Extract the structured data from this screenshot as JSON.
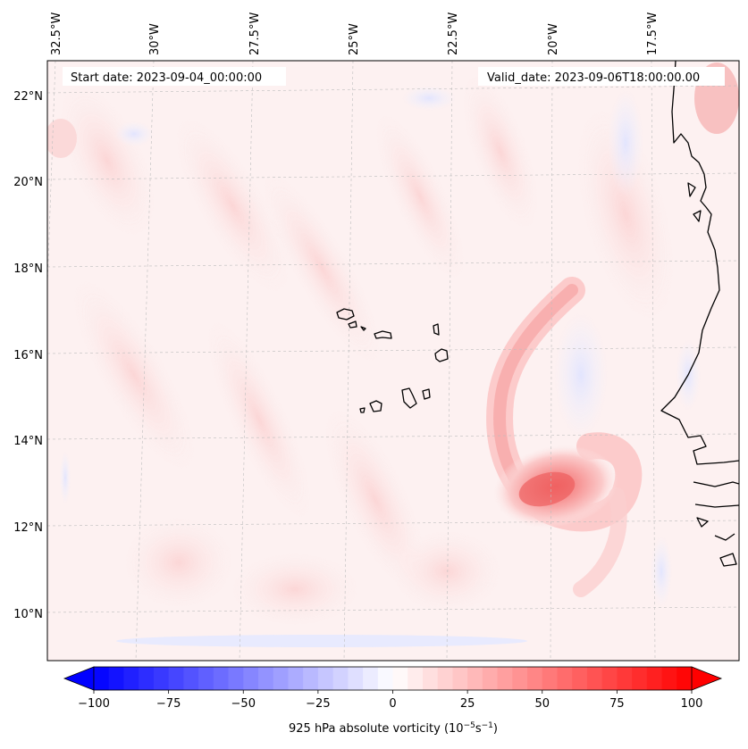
{
  "map": {
    "start_date": "Start date: 2023-09-04_00:00:00",
    "valid_date": "Valid_date: 2023-09-06T18:00:00.00",
    "lon_labels": [
      "32.5°W",
      "30°W",
      "27.5°W",
      "25°W",
      "22.5°W",
      "20°W",
      "17.5°W"
    ],
    "lat_labels": [
      "22°N",
      "20°N",
      "18°N",
      "16°N",
      "14°N",
      "12°N",
      "10°N"
    ],
    "vortex_center_label": "",
    "colors": {
      "negative": "#0000ff",
      "positive": "#ff0000",
      "neutral": "#ffffff",
      "coast": "#000000"
    }
  },
  "colorbar": {
    "label": "925 hPa absolute vorticity (10",
    "exp1": "−5",
    "mid": "s",
    "exp2": "−1",
    "close": ")",
    "ticks": [
      "−100",
      "−75",
      "−50",
      "−25",
      "0",
      "25",
      "50",
      "75",
      "100"
    ],
    "min": -100,
    "max": 100,
    "levels": 40
  }
}
